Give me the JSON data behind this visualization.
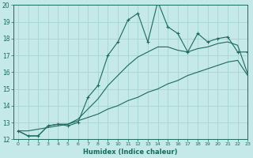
{
  "xlabel": "Humidex (Indice chaleur)",
  "ylabel": "",
  "bg_color": "#c5e8e8",
  "grid_color": "#a8d4d4",
  "line_color": "#1a6b5a",
  "x_values": [
    0,
    1,
    2,
    3,
    4,
    5,
    6,
    7,
    8,
    9,
    10,
    11,
    12,
    13,
    14,
    15,
    16,
    17,
    18,
    19,
    20,
    21,
    22,
    23
  ],
  "y_main": [
    12.5,
    12.2,
    12.2,
    12.8,
    12.9,
    12.8,
    13.0,
    14.5,
    15.2,
    17.0,
    17.8,
    19.1,
    19.5,
    17.8,
    20.2,
    18.7,
    18.3,
    17.2,
    18.3,
    17.8,
    18.0,
    18.1,
    17.2,
    17.2
  ],
  "y_curve": [
    12.5,
    12.2,
    12.2,
    12.8,
    12.9,
    12.9,
    13.2,
    13.8,
    14.4,
    15.2,
    15.8,
    16.4,
    16.9,
    17.2,
    17.5,
    17.5,
    17.3,
    17.2,
    17.4,
    17.5,
    17.7,
    17.8,
    17.6,
    15.9
  ],
  "y_linear": [
    12.5,
    12.5,
    12.6,
    12.7,
    12.8,
    12.9,
    13.1,
    13.3,
    13.5,
    13.8,
    14.0,
    14.3,
    14.5,
    14.8,
    15.0,
    15.3,
    15.5,
    15.8,
    16.0,
    16.2,
    16.4,
    16.6,
    16.7,
    15.8
  ],
  "ylim": [
    12,
    20
  ],
  "xlim": [
    -0.5,
    23
  ],
  "yticks": [
    12,
    13,
    14,
    15,
    16,
    17,
    18,
    19,
    20
  ],
  "xticks": [
    0,
    1,
    2,
    3,
    4,
    5,
    6,
    7,
    8,
    9,
    10,
    11,
    12,
    13,
    14,
    15,
    16,
    17,
    18,
    19,
    20,
    21,
    22,
    23
  ]
}
